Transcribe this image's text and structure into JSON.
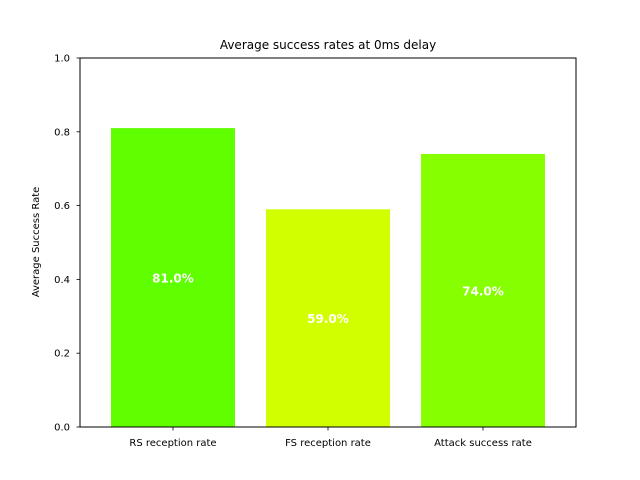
{
  "chart_data": {
    "type": "bar",
    "title": "Average success rates at 0ms delay",
    "xlabel": "",
    "ylabel": "Average Success Rate",
    "ylim": [
      0,
      1.0
    ],
    "yticks": [
      "0.0",
      "0.2",
      "0.4",
      "0.6",
      "0.8",
      "1.0"
    ],
    "grid": false,
    "categories": [
      "RS reception rate",
      "FS reception rate",
      "Attack success rate"
    ],
    "values": [
      0.81,
      0.59,
      0.74
    ],
    "data_labels": [
      "81.0%",
      "59.0%",
      "74.0%"
    ],
    "colors": [
      "#5fff00",
      "#d1ff00",
      "#86ff00"
    ]
  }
}
